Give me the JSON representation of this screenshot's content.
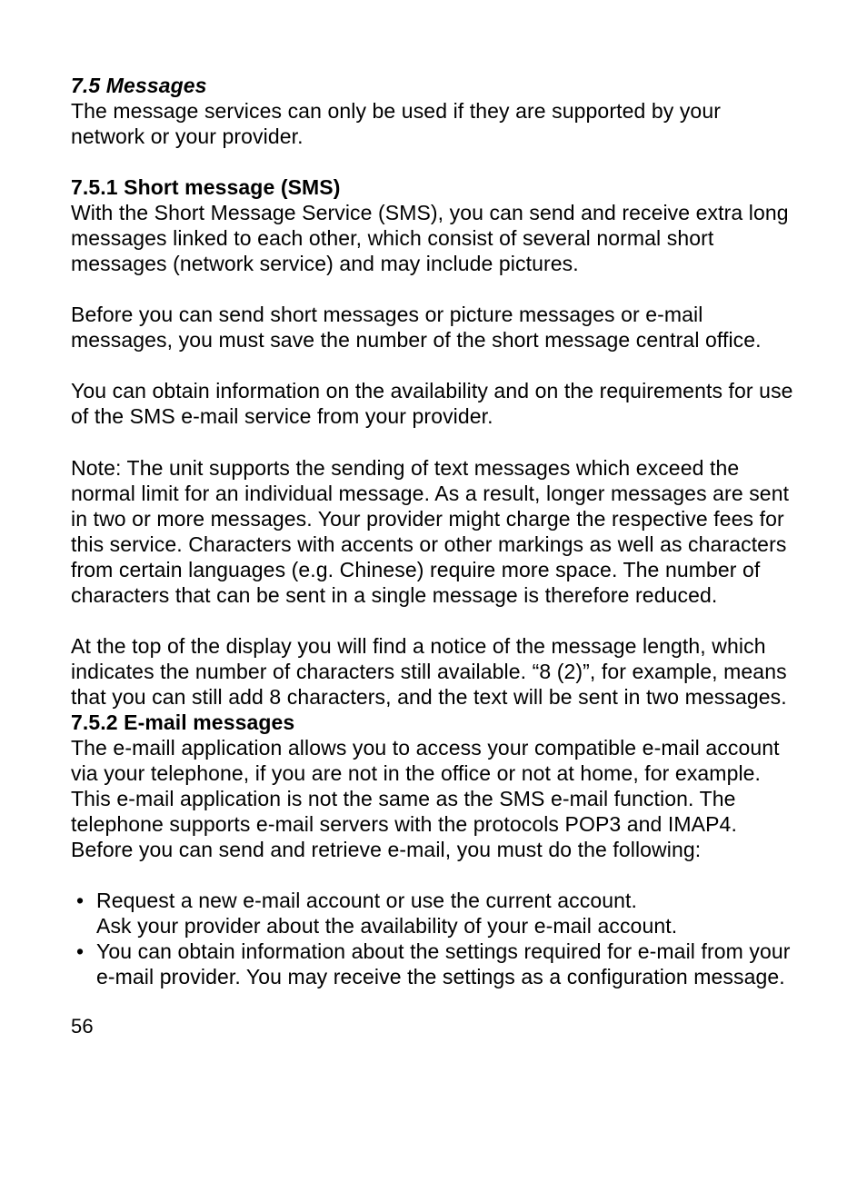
{
  "section": {
    "heading": "7.5 Messages",
    "intro": "The message services can only be used if they are supported by your network or your provider."
  },
  "sms": {
    "heading": "7.5.1 Short message (SMS)",
    "p1": "With the Short Message Service (SMS), you can send and receive extra long messages linked to each other, which consist of several normal short messages (network service) and may include pictures.",
    "p2": "Before you can send short messages or picture messages or e-mail messages, you must save the number of the short message central office.",
    "p3": "You can obtain information on the availability and on the requirements for use of the SMS e-mail service from your provider.",
    "p4": "Note: The unit supports the sending of text messages which exceed the normal limit for an individual message. As a result, longer messages are sent in two or more messages.  Your provider might charge the respective fees for this service. Characters with accents or other markings as well as characters from certain languages (e.g. Chinese) require more space. The number of characters that can be sent in a single message is therefore reduced.",
    "p5": "At the top of the display you will find a notice of the message length, which indicates the number of characters still available. “8 (2)”, for example, means that you can still add 8 characters, and the text will be sent in two messages."
  },
  "email": {
    "heading": "7.5.2 E-mail messages",
    "p1": "The e-maill application allows you to access your compatible e-mail account via your telephone, if you are not in the office or not at home, for example. This e-mail application is not the same as the SMS e-mail function. The telephone supports e-mail servers with the protocols POP3 and IMAP4. Before you can send and retrieve e-mail, you must do the following:",
    "bullets": [
      "Request a new e-mail account or use the current account.\nAsk your provider about the availability of your e-mail account.",
      "You can obtain information about the settings required for e-mail from your e-mail provider. You may receive the settings as a configuration message."
    ]
  },
  "page_number": "56"
}
